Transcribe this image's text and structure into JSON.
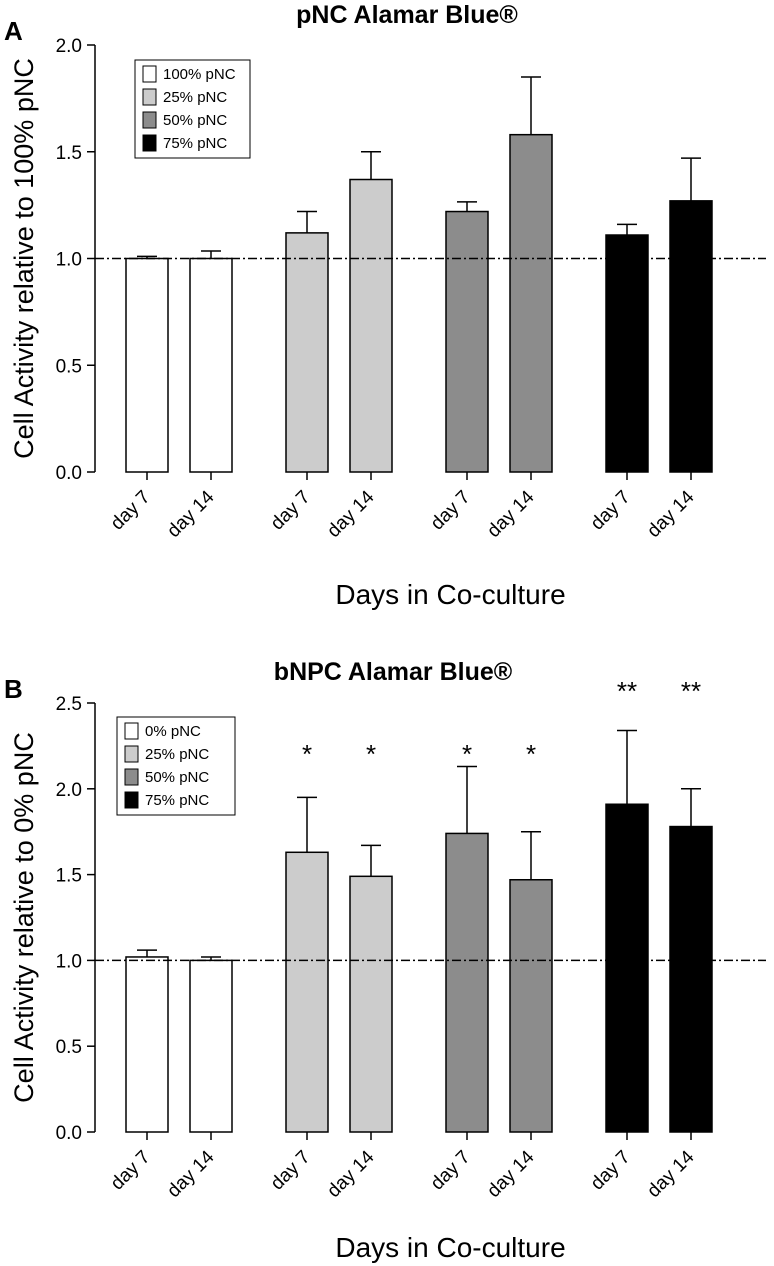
{
  "chart_data": [
    {
      "type": "bar",
      "panel_label": "A",
      "title": "pNC Alamar Blue®",
      "ylabel": "Cell Activity relative to 100% pNC",
      "xlabel": "Days in Co-culture",
      "ylim": [
        0,
        2.0
      ],
      "yticks": [
        "0.0",
        "0.5",
        "1.0",
        "1.5",
        "2.0"
      ],
      "reference_line": 1.0,
      "legend_placement": "top-left",
      "categories": [
        "day 7",
        "day 14"
      ],
      "series": [
        {
          "name": "100% pNC",
          "color": "#ffffff",
          "values": [
            1.0,
            1.0
          ],
          "errors": [
            0.01,
            0.035
          ],
          "sig": [
            "",
            ""
          ]
        },
        {
          "name": "25% pNC",
          "color": "#cccccc",
          "values": [
            1.12,
            1.37
          ],
          "errors": [
            0.1,
            0.13
          ],
          "sig": [
            "",
            ""
          ]
        },
        {
          "name": "50% pNC",
          "color": "#8c8c8c",
          "values": [
            1.22,
            1.58
          ],
          "errors": [
            0.045,
            0.27
          ],
          "sig": [
            "",
            ""
          ]
        },
        {
          "name": "75% pNC",
          "color": "#000000",
          "values": [
            1.11,
            1.27
          ],
          "errors": [
            0.05,
            0.2
          ],
          "sig": [
            "",
            ""
          ]
        }
      ]
    },
    {
      "type": "bar",
      "panel_label": "B",
      "title": "bNPC Alamar Blue®",
      "ylabel": "Cell Activity relative to 0% pNC",
      "xlabel": "Days in Co-culture",
      "ylim": [
        0,
        2.5
      ],
      "yticks": [
        "0.0",
        "0.5",
        "1.0",
        "1.5",
        "2.0",
        "2.5"
      ],
      "reference_line": 1.0,
      "legend_placement": "top-left",
      "categories": [
        "day 7",
        "day 14"
      ],
      "series": [
        {
          "name": "0%  pNC",
          "color": "#ffffff",
          "values": [
            1.02,
            1.0
          ],
          "errors": [
            0.04,
            0.02
          ],
          "sig": [
            "",
            ""
          ]
        },
        {
          "name": "25% pNC",
          "color": "#cccccc",
          "values": [
            1.63,
            1.49
          ],
          "errors": [
            0.32,
            0.18
          ],
          "sig": [
            "*",
            "*"
          ]
        },
        {
          "name": "50% pNC",
          "color": "#8c8c8c",
          "values": [
            1.74,
            1.47
          ],
          "errors": [
            0.39,
            0.28
          ],
          "sig": [
            "*",
            "*"
          ]
        },
        {
          "name": "75% pNC",
          "color": "#000000",
          "values": [
            1.91,
            1.78
          ],
          "errors": [
            0.43,
            0.22
          ],
          "sig": [
            "**",
            "**"
          ]
        }
      ]
    }
  ]
}
